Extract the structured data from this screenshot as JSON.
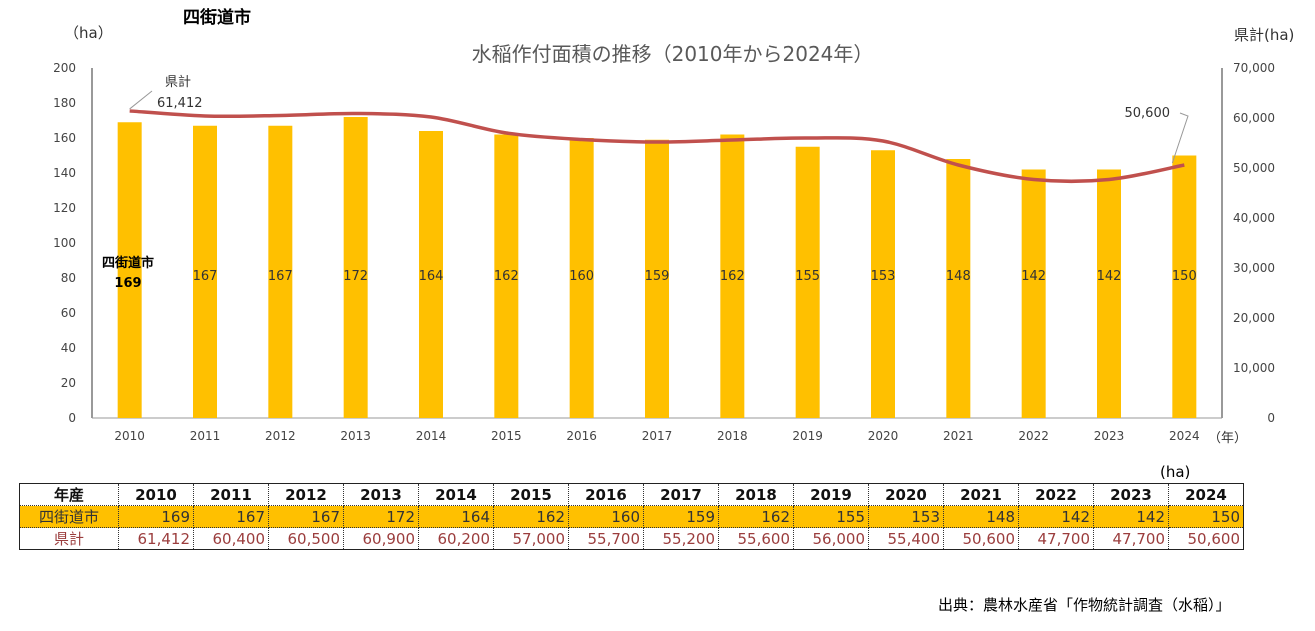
{
  "header": {
    "city_title": "四街道市",
    "unit_left": "（ha）",
    "unit_right": "県計(ha)",
    "source": "出典：農林水産省「作物統計調査（水稲）」"
  },
  "chart_data": {
    "type": "bar+line",
    "title": "水稲作付面積の推移（2010年から2024年）",
    "xlabel": "（年）",
    "categories": [
      "2010",
      "2011",
      "2012",
      "2013",
      "2014",
      "2015",
      "2016",
      "2017",
      "2018",
      "2019",
      "2020",
      "2021",
      "2022",
      "2023",
      "2024"
    ],
    "series": [
      {
        "name": "四街道市",
        "type": "bar",
        "axis": "left",
        "color": "#FFC000",
        "values": [
          169,
          167,
          167,
          172,
          164,
          162,
          160,
          159,
          162,
          155,
          153,
          148,
          142,
          142,
          150
        ]
      },
      {
        "name": "県計",
        "type": "line",
        "axis": "right",
        "color": "#C0504D",
        "values": [
          61412,
          60400,
          60500,
          60900,
          60200,
          57000,
          55700,
          55200,
          55600,
          56000,
          55400,
          50600,
          47700,
          47700,
          50600
        ]
      }
    ],
    "ylim_left": [
      0,
      200
    ],
    "yticks_left": [
      "0",
      "20",
      "40",
      "60",
      "80",
      "100",
      "120",
      "140",
      "160",
      "180",
      "200"
    ],
    "ylim_right": [
      0,
      70000
    ],
    "yticks_right": [
      "0",
      "10,000",
      "20,000",
      "30,000",
      "40,000",
      "50,000",
      "60,000",
      "70,000"
    ],
    "annotations": {
      "line_start_name": "県計",
      "line_start_value": "61,412",
      "line_end_value": "50,600",
      "bar_first_name": "四街道市",
      "bar_first_value": "169"
    },
    "grid": false,
    "legend": "none"
  },
  "table": {
    "unit": "(ha)",
    "header": "年産",
    "years": [
      "2010",
      "2011",
      "2012",
      "2013",
      "2014",
      "2015",
      "2016",
      "2017",
      "2018",
      "2019",
      "2020",
      "2021",
      "2022",
      "2023",
      "2024"
    ],
    "city_label": "四街道市",
    "city": [
      "169",
      "167",
      "167",
      "172",
      "164",
      "162",
      "160",
      "159",
      "162",
      "155",
      "153",
      "148",
      "142",
      "142",
      "150"
    ],
    "pref_label": "県計",
    "pref": [
      "61,412",
      "60,400",
      "60,500",
      "60,900",
      "60,200",
      "57,000",
      "55,700",
      "55,200",
      "55,600",
      "56,000",
      "55,400",
      "50,600",
      "47,700",
      "47,700",
      "50,600"
    ]
  }
}
